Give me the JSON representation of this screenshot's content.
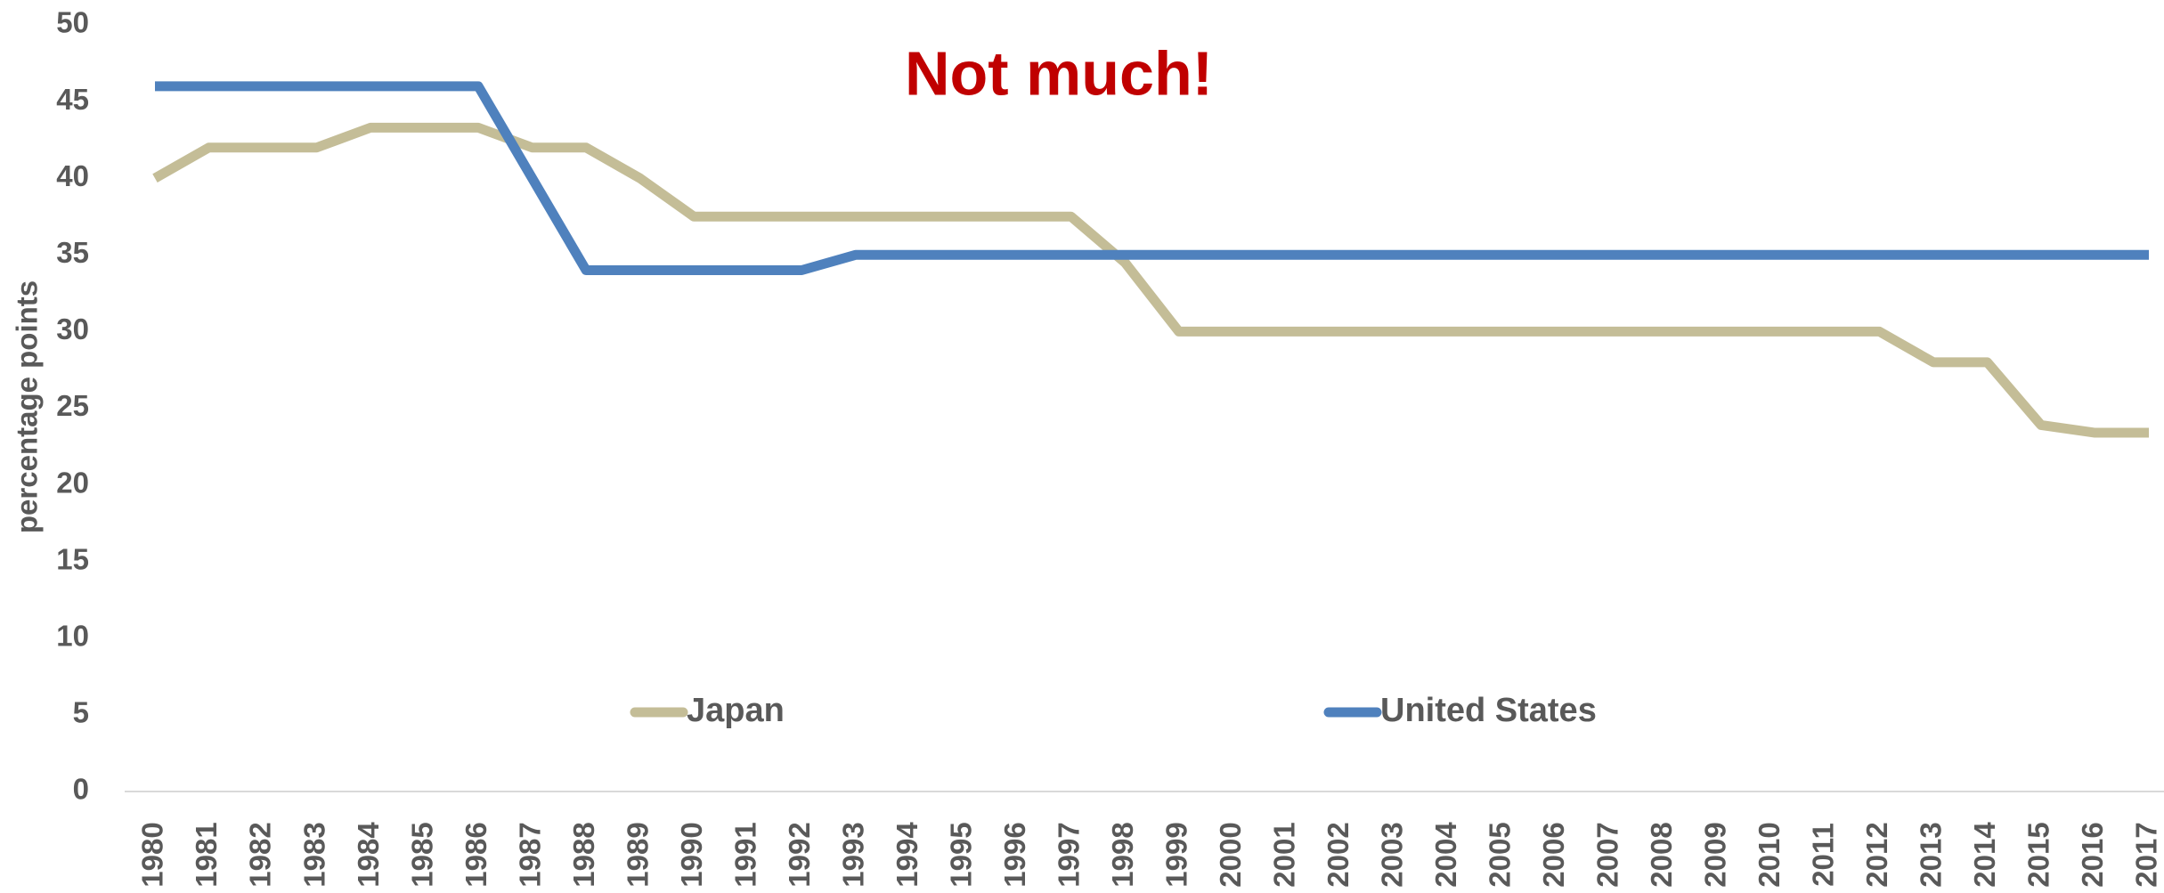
{
  "chart_data": {
    "type": "line",
    "title": "Not much!",
    "y_label": "percentage points",
    "categories": [
      "1980",
      "1981",
      "1982",
      "1983",
      "1984",
      "1985",
      "1986",
      "1987",
      "1988",
      "1989",
      "1990",
      "1991",
      "1992",
      "1993",
      "1994",
      "1995",
      "1996",
      "1997",
      "1998",
      "1999",
      "2000",
      "2001",
      "2002",
      "2003",
      "2004",
      "2005",
      "2006",
      "2007",
      "2008",
      "2009",
      "2010",
      "2011",
      "2012",
      "2013",
      "2014",
      "2015",
      "2016",
      "2017"
    ],
    "series": [
      {
        "name": "Japan",
        "color": "#c4bd97",
        "values": [
          40,
          42,
          42,
          42,
          43.3,
          43.3,
          43.3,
          42,
          42,
          40,
          37.5,
          37.5,
          37.5,
          37.5,
          37.5,
          37.5,
          37.5,
          37.5,
          34.5,
          30,
          30,
          30,
          30,
          30,
          30,
          30,
          30,
          30,
          30,
          30,
          30,
          30,
          30,
          28,
          28,
          23.9,
          23.4,
          23.4
        ]
      },
      {
        "name": "United States",
        "color": "#4f81bd",
        "values": [
          46,
          46,
          46,
          46,
          46,
          46,
          46,
          40,
          34,
          34,
          34,
          34,
          34,
          35,
          35,
          35,
          35,
          35,
          35,
          35,
          35,
          35,
          35,
          35,
          35,
          35,
          35,
          35,
          35,
          35,
          35,
          35,
          35,
          35,
          35,
          35,
          35,
          35
        ]
      }
    ],
    "ylim": [
      0,
      50
    ],
    "yticks": [
      0,
      5,
      10,
      15,
      20,
      25,
      30,
      35,
      40,
      45,
      50
    ],
    "grid": false,
    "title_color": "#c00000"
  }
}
